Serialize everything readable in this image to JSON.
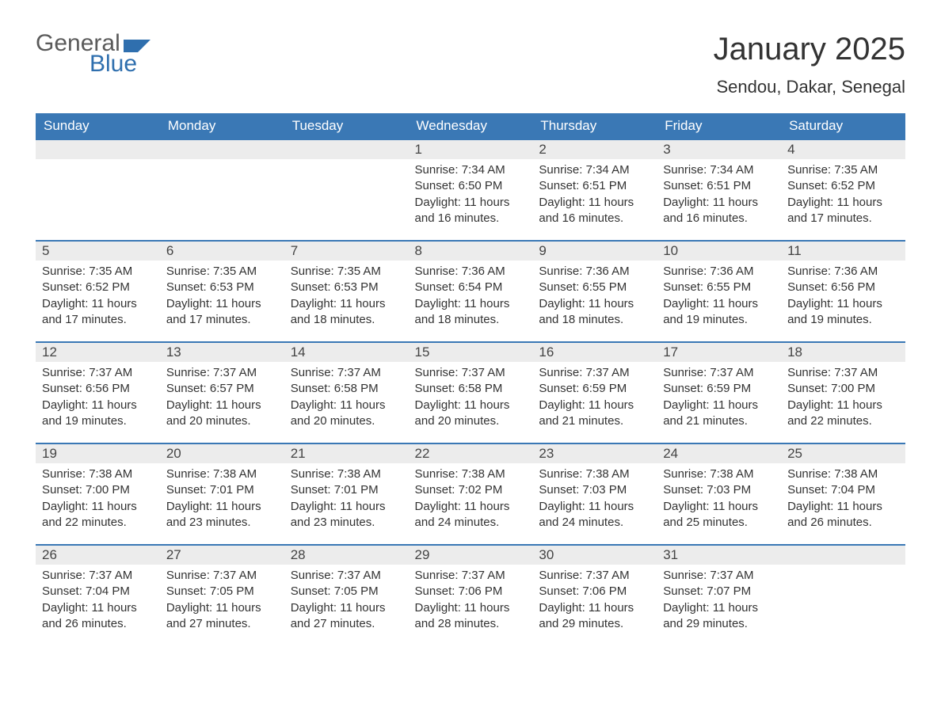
{
  "brand": {
    "word1": "General",
    "word2": "Blue",
    "text_color": "#5a5a5a",
    "accent_color": "#2f6fae"
  },
  "header": {
    "month_title": "January 2025",
    "location": "Sendou, Dakar, Senegal"
  },
  "styling": {
    "header_bg": "#3a78b5",
    "header_text": "#ffffff",
    "daynum_bg": "#ececec",
    "row_border_color": "#3a78b5",
    "body_text": "#333333",
    "page_bg": "#ffffff",
    "th_fontsize": 17,
    "daynum_fontsize": 17,
    "content_fontsize": 15,
    "title_fontsize": 40,
    "location_fontsize": 22
  },
  "calendar": {
    "day_names": [
      "Sunday",
      "Monday",
      "Tuesday",
      "Wednesday",
      "Thursday",
      "Friday",
      "Saturday"
    ],
    "weeks": [
      [
        null,
        null,
        null,
        {
          "num": "1",
          "sunrise": "7:34 AM",
          "sunset": "6:50 PM",
          "daylight": "11 hours and 16 minutes."
        },
        {
          "num": "2",
          "sunrise": "7:34 AM",
          "sunset": "6:51 PM",
          "daylight": "11 hours and 16 minutes."
        },
        {
          "num": "3",
          "sunrise": "7:34 AM",
          "sunset": "6:51 PM",
          "daylight": "11 hours and 16 minutes."
        },
        {
          "num": "4",
          "sunrise": "7:35 AM",
          "sunset": "6:52 PM",
          "daylight": "11 hours and 17 minutes."
        }
      ],
      [
        {
          "num": "5",
          "sunrise": "7:35 AM",
          "sunset": "6:52 PM",
          "daylight": "11 hours and 17 minutes."
        },
        {
          "num": "6",
          "sunrise": "7:35 AM",
          "sunset": "6:53 PM",
          "daylight": "11 hours and 17 minutes."
        },
        {
          "num": "7",
          "sunrise": "7:35 AM",
          "sunset": "6:53 PM",
          "daylight": "11 hours and 18 minutes."
        },
        {
          "num": "8",
          "sunrise": "7:36 AM",
          "sunset": "6:54 PM",
          "daylight": "11 hours and 18 minutes."
        },
        {
          "num": "9",
          "sunrise": "7:36 AM",
          "sunset": "6:55 PM",
          "daylight": "11 hours and 18 minutes."
        },
        {
          "num": "10",
          "sunrise": "7:36 AM",
          "sunset": "6:55 PM",
          "daylight": "11 hours and 19 minutes."
        },
        {
          "num": "11",
          "sunrise": "7:36 AM",
          "sunset": "6:56 PM",
          "daylight": "11 hours and 19 minutes."
        }
      ],
      [
        {
          "num": "12",
          "sunrise": "7:37 AM",
          "sunset": "6:56 PM",
          "daylight": "11 hours and 19 minutes."
        },
        {
          "num": "13",
          "sunrise": "7:37 AM",
          "sunset": "6:57 PM",
          "daylight": "11 hours and 20 minutes."
        },
        {
          "num": "14",
          "sunrise": "7:37 AM",
          "sunset": "6:58 PM",
          "daylight": "11 hours and 20 minutes."
        },
        {
          "num": "15",
          "sunrise": "7:37 AM",
          "sunset": "6:58 PM",
          "daylight": "11 hours and 20 minutes."
        },
        {
          "num": "16",
          "sunrise": "7:37 AM",
          "sunset": "6:59 PM",
          "daylight": "11 hours and 21 minutes."
        },
        {
          "num": "17",
          "sunrise": "7:37 AM",
          "sunset": "6:59 PM",
          "daylight": "11 hours and 21 minutes."
        },
        {
          "num": "18",
          "sunrise": "7:37 AM",
          "sunset": "7:00 PM",
          "daylight": "11 hours and 22 minutes."
        }
      ],
      [
        {
          "num": "19",
          "sunrise": "7:38 AM",
          "sunset": "7:00 PM",
          "daylight": "11 hours and 22 minutes."
        },
        {
          "num": "20",
          "sunrise": "7:38 AM",
          "sunset": "7:01 PM",
          "daylight": "11 hours and 23 minutes."
        },
        {
          "num": "21",
          "sunrise": "7:38 AM",
          "sunset": "7:01 PM",
          "daylight": "11 hours and 23 minutes."
        },
        {
          "num": "22",
          "sunrise": "7:38 AM",
          "sunset": "7:02 PM",
          "daylight": "11 hours and 24 minutes."
        },
        {
          "num": "23",
          "sunrise": "7:38 AM",
          "sunset": "7:03 PM",
          "daylight": "11 hours and 24 minutes."
        },
        {
          "num": "24",
          "sunrise": "7:38 AM",
          "sunset": "7:03 PM",
          "daylight": "11 hours and 25 minutes."
        },
        {
          "num": "25",
          "sunrise": "7:38 AM",
          "sunset": "7:04 PM",
          "daylight": "11 hours and 26 minutes."
        }
      ],
      [
        {
          "num": "26",
          "sunrise": "7:37 AM",
          "sunset": "7:04 PM",
          "daylight": "11 hours and 26 minutes."
        },
        {
          "num": "27",
          "sunrise": "7:37 AM",
          "sunset": "7:05 PM",
          "daylight": "11 hours and 27 minutes."
        },
        {
          "num": "28",
          "sunrise": "7:37 AM",
          "sunset": "7:05 PM",
          "daylight": "11 hours and 27 minutes."
        },
        {
          "num": "29",
          "sunrise": "7:37 AM",
          "sunset": "7:06 PM",
          "daylight": "11 hours and 28 minutes."
        },
        {
          "num": "30",
          "sunrise": "7:37 AM",
          "sunset": "7:06 PM",
          "daylight": "11 hours and 29 minutes."
        },
        {
          "num": "31",
          "sunrise": "7:37 AM",
          "sunset": "7:07 PM",
          "daylight": "11 hours and 29 minutes."
        },
        null
      ]
    ],
    "labels": {
      "sunrise_prefix": "Sunrise: ",
      "sunset_prefix": "Sunset: ",
      "daylight_prefix": "Daylight: "
    }
  }
}
